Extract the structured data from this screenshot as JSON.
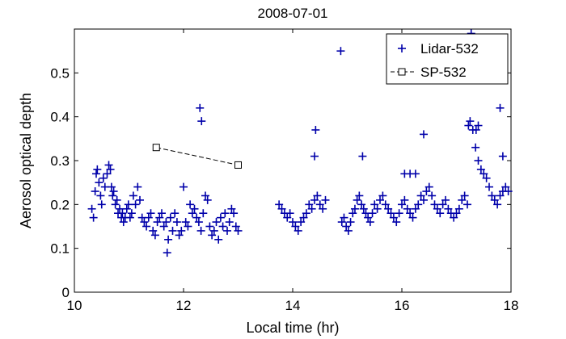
{
  "chart_data": {
    "type": "scatter",
    "title": "2008-07-01",
    "xlabel": "Local time (hr)",
    "ylabel": "Aerosol optical depth",
    "xlim": [
      10,
      18
    ],
    "ylim": [
      0,
      0.6
    ],
    "xticks": [
      "10",
      "12",
      "14",
      "16",
      "18"
    ],
    "yticks": [
      "0",
      "0.1",
      "0.2",
      "0.3",
      "0.4",
      "0.5"
    ],
    "grid": false,
    "legend_position": "top-right",
    "series": [
      {
        "name": "Lidar-532",
        "marker": "plus",
        "color": "#0000aa",
        "x": [
          10.32,
          10.35,
          10.38,
          10.4,
          10.42,
          10.45,
          10.48,
          10.5,
          10.53,
          10.56,
          10.6,
          10.63,
          10.66,
          10.68,
          10.7,
          10.72,
          10.75,
          10.78,
          10.8,
          10.83,
          10.86,
          10.88,
          10.9,
          10.93,
          10.96,
          10.99,
          11.02,
          11.05,
          11.08,
          11.12,
          11.16,
          11.2,
          11.24,
          11.28,
          11.32,
          11.36,
          11.4,
          11.44,
          11.48,
          11.52,
          11.56,
          11.6,
          11.64,
          11.68,
          11.72,
          11.76,
          11.8,
          11.84,
          11.88,
          11.92,
          11.96,
          12.0,
          12.04,
          12.08,
          12.12,
          12.16,
          12.2,
          12.24,
          12.28,
          12.32,
          12.36,
          12.4,
          12.44,
          12.48,
          12.52,
          12.56,
          12.6,
          12.64,
          12.68,
          12.72,
          12.76,
          12.8,
          12.84,
          12.88,
          12.92,
          12.96,
          13.0,
          12.3,
          12.33,
          11.7,
          13.75,
          13.8,
          13.85,
          13.9,
          13.95,
          14.0,
          14.05,
          14.1,
          14.15,
          14.2,
          14.25,
          14.3,
          14.35,
          14.4,
          14.45,
          14.5,
          14.55,
          14.6,
          14.42,
          14.4,
          14.88,
          14.9,
          14.94,
          14.98,
          15.02,
          15.06,
          15.1,
          15.14,
          15.18,
          15.22,
          15.26,
          15.3,
          15.34,
          15.38,
          15.42,
          15.46,
          15.5,
          15.55,
          15.6,
          15.65,
          15.7,
          15.75,
          15.8,
          15.85,
          15.9,
          15.95,
          16.0,
          16.05,
          16.1,
          16.15,
          16.2,
          16.25,
          16.3,
          16.35,
          16.4,
          16.45,
          16.5,
          16.55,
          16.6,
          16.65,
          16.7,
          16.75,
          16.8,
          16.85,
          16.9,
          16.95,
          17.0,
          17.05,
          17.1,
          17.15,
          17.2,
          17.25,
          17.3,
          17.35,
          17.4,
          17.45,
          17.5,
          17.55,
          17.6,
          17.65,
          17.7,
          17.75,
          17.8,
          17.85,
          17.9,
          17.95,
          15.28,
          16.05,
          16.15,
          16.25,
          16.4,
          17.22,
          17.27,
          17.36,
          17.4,
          17.8,
          17.85
        ],
        "y": [
          0.19,
          0.17,
          0.23,
          0.27,
          0.28,
          0.25,
          0.22,
          0.2,
          0.26,
          0.24,
          0.27,
          0.29,
          0.28,
          0.24,
          0.22,
          0.23,
          0.2,
          0.21,
          0.18,
          0.19,
          0.17,
          0.18,
          0.16,
          0.17,
          0.19,
          0.2,
          0.17,
          0.18,
          0.22,
          0.2,
          0.24,
          0.21,
          0.17,
          0.16,
          0.15,
          0.17,
          0.18,
          0.14,
          0.13,
          0.16,
          0.17,
          0.18,
          0.15,
          0.16,
          0.12,
          0.17,
          0.14,
          0.18,
          0.16,
          0.13,
          0.14,
          0.24,
          0.16,
          0.15,
          0.2,
          0.18,
          0.19,
          0.17,
          0.16,
          0.14,
          0.18,
          0.22,
          0.21,
          0.15,
          0.13,
          0.14,
          0.16,
          0.12,
          0.17,
          0.15,
          0.18,
          0.14,
          0.16,
          0.19,
          0.18,
          0.15,
          0.14,
          0.42,
          0.39,
          0.09,
          0.2,
          0.19,
          0.18,
          0.17,
          0.18,
          0.16,
          0.15,
          0.14,
          0.16,
          0.17,
          0.18,
          0.2,
          0.19,
          0.21,
          0.22,
          0.2,
          0.19,
          0.21,
          0.37,
          0.31,
          0.55,
          0.16,
          0.17,
          0.15,
          0.14,
          0.16,
          0.18,
          0.19,
          0.21,
          0.22,
          0.2,
          0.19,
          0.18,
          0.17,
          0.16,
          0.18,
          0.2,
          0.19,
          0.21,
          0.22,
          0.2,
          0.19,
          0.18,
          0.17,
          0.16,
          0.18,
          0.2,
          0.21,
          0.19,
          0.18,
          0.17,
          0.19,
          0.2,
          0.22,
          0.21,
          0.23,
          0.24,
          0.22,
          0.2,
          0.19,
          0.18,
          0.2,
          0.21,
          0.19,
          0.18,
          0.17,
          0.18,
          0.19,
          0.21,
          0.22,
          0.2,
          0.39,
          0.37,
          0.33,
          0.3,
          0.28,
          0.27,
          0.26,
          0.24,
          0.22,
          0.21,
          0.2,
          0.22,
          0.23,
          0.24,
          0.23,
          0.31,
          0.27,
          0.27,
          0.27,
          0.36,
          0.38,
          0.59,
          0.37,
          0.38,
          0.42,
          0.31
        ],
        "dense_band_note": ""
      },
      {
        "name": "SP-532",
        "marker": "square",
        "line": "dashed",
        "color": "#000000",
        "x": [
          11.5,
          13.0
        ],
        "y": [
          0.33,
          0.29
        ]
      }
    ]
  }
}
